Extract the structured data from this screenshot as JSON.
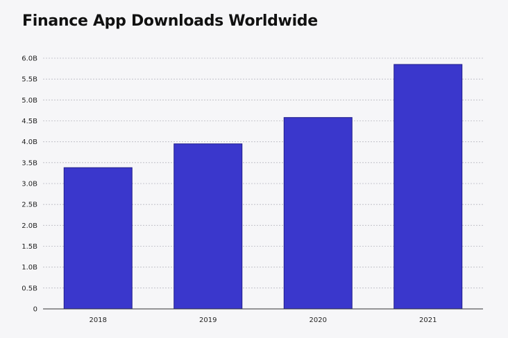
{
  "chart_data": {
    "type": "bar",
    "title": "Finance App Downloads Worldwide",
    "xlabel": "",
    "ylabel": "",
    "categories": [
      "2018",
      "2019",
      "2020",
      "2021"
    ],
    "values": [
      3.38,
      3.95,
      4.58,
      5.85
    ],
    "ylim": [
      0,
      6
    ],
    "yticks": [
      0,
      0.5,
      1,
      1.5,
      2,
      2.5,
      3,
      3.5,
      4,
      4.5,
      5,
      5.5,
      6
    ],
    "ytick_labels": [
      "0",
      "0.5B",
      "1.0B",
      "1.5B",
      "2.0B",
      "2.5B",
      "3.0B",
      "3.5B",
      "4.0B",
      "4.5B",
      "5.0B",
      "5.5B",
      "6.0B"
    ],
    "grid": true,
    "colors": {
      "bar": "#3a37cc",
      "bar_outline": "#1f1c8a",
      "grid": "#b8b8c0",
      "axis": "#333333"
    }
  }
}
